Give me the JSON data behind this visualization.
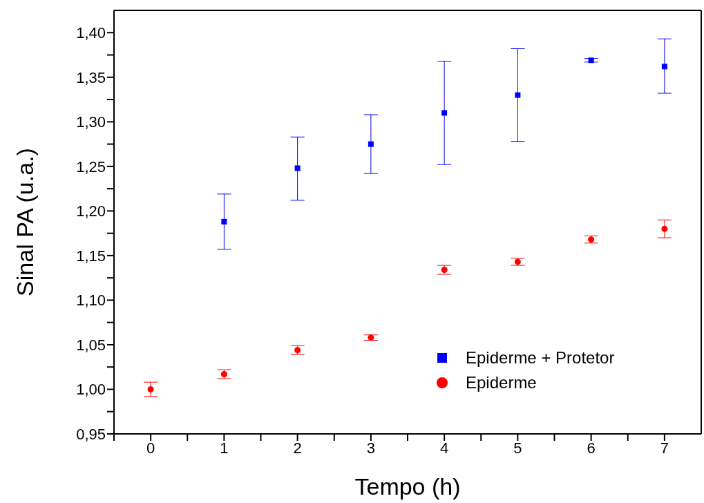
{
  "chart_data": {
    "type": "scatter",
    "xlabel": "Tempo (h)",
    "ylabel": "Sinal PA (u.a.)",
    "xlim": [
      -0.5,
      7.5
    ],
    "xticks": [
      0,
      1,
      2,
      3,
      4,
      5,
      6,
      7,
      {
        "value": -0.5,
        "label": null
      },
      {
        "value": 0.5,
        "label": null
      },
      {
        "value": 1.5,
        "label": null
      },
      {
        "value": 2.5,
        "label": null
      },
      {
        "value": 3.5,
        "label": null
      },
      {
        "value": 4.5,
        "label": null
      },
      {
        "value": 5.5,
        "label": null
      },
      {
        "value": 6.5,
        "label": null
      }
    ],
    "ylim": [
      0.95,
      1.425
    ],
    "yticks": [
      {
        "value": 0.95,
        "label": "0,95"
      },
      {
        "value": 1.0,
        "label": "1,00"
      },
      {
        "value": 1.05,
        "label": "1,05"
      },
      {
        "value": 1.1,
        "label": "1,10"
      },
      {
        "value": 1.15,
        "label": "1,15"
      },
      {
        "value": 1.2,
        "label": "1,20"
      },
      {
        "value": 1.25,
        "label": "1,25"
      },
      {
        "value": 1.3,
        "label": "1,30"
      },
      {
        "value": 1.35,
        "label": "1,35"
      },
      {
        "value": 1.4,
        "label": "1,40"
      },
      {
        "value": 0.975,
        "label": null
      },
      {
        "value": 1.025,
        "label": null
      },
      {
        "value": 1.075,
        "label": null
      },
      {
        "value": 1.125,
        "label": null
      },
      {
        "value": 1.175,
        "label": null
      },
      {
        "value": 1.225,
        "label": null
      },
      {
        "value": 1.275,
        "label": null
      },
      {
        "value": 1.325,
        "label": null
      },
      {
        "value": 1.375,
        "label": null
      }
    ],
    "grid": false,
    "legend": "bottom right",
    "series": [
      {
        "name": "Epiderme + Protetor",
        "color": "#0000ff",
        "marker": "square",
        "x": [
          1,
          2,
          3,
          4,
          5,
          6,
          7
        ],
        "values": [
          1.188,
          1.248,
          1.275,
          1.31,
          1.33,
          1.369,
          1.362
        ],
        "errors": [
          [
            1.157,
            1.219
          ],
          [
            1.212,
            1.283
          ],
          [
            1.242,
            1.308
          ],
          [
            1.252,
            1.368
          ],
          [
            1.278,
            1.382
          ],
          [
            1.367,
            1.371
          ],
          [
            1.332,
            1.393
          ]
        ]
      },
      {
        "name": "Epiderme",
        "color": "#ff0000",
        "marker": "circle",
        "x": [
          0,
          1,
          2,
          3,
          4,
          5,
          6,
          7
        ],
        "values": [
          1.0,
          1.017,
          1.044,
          1.058,
          1.134,
          1.143,
          1.168,
          1.18
        ],
        "errors": [
          0.008,
          0.005,
          0.005,
          0.003,
          0.005,
          0.004,
          0.004,
          0.01
        ]
      }
    ]
  }
}
